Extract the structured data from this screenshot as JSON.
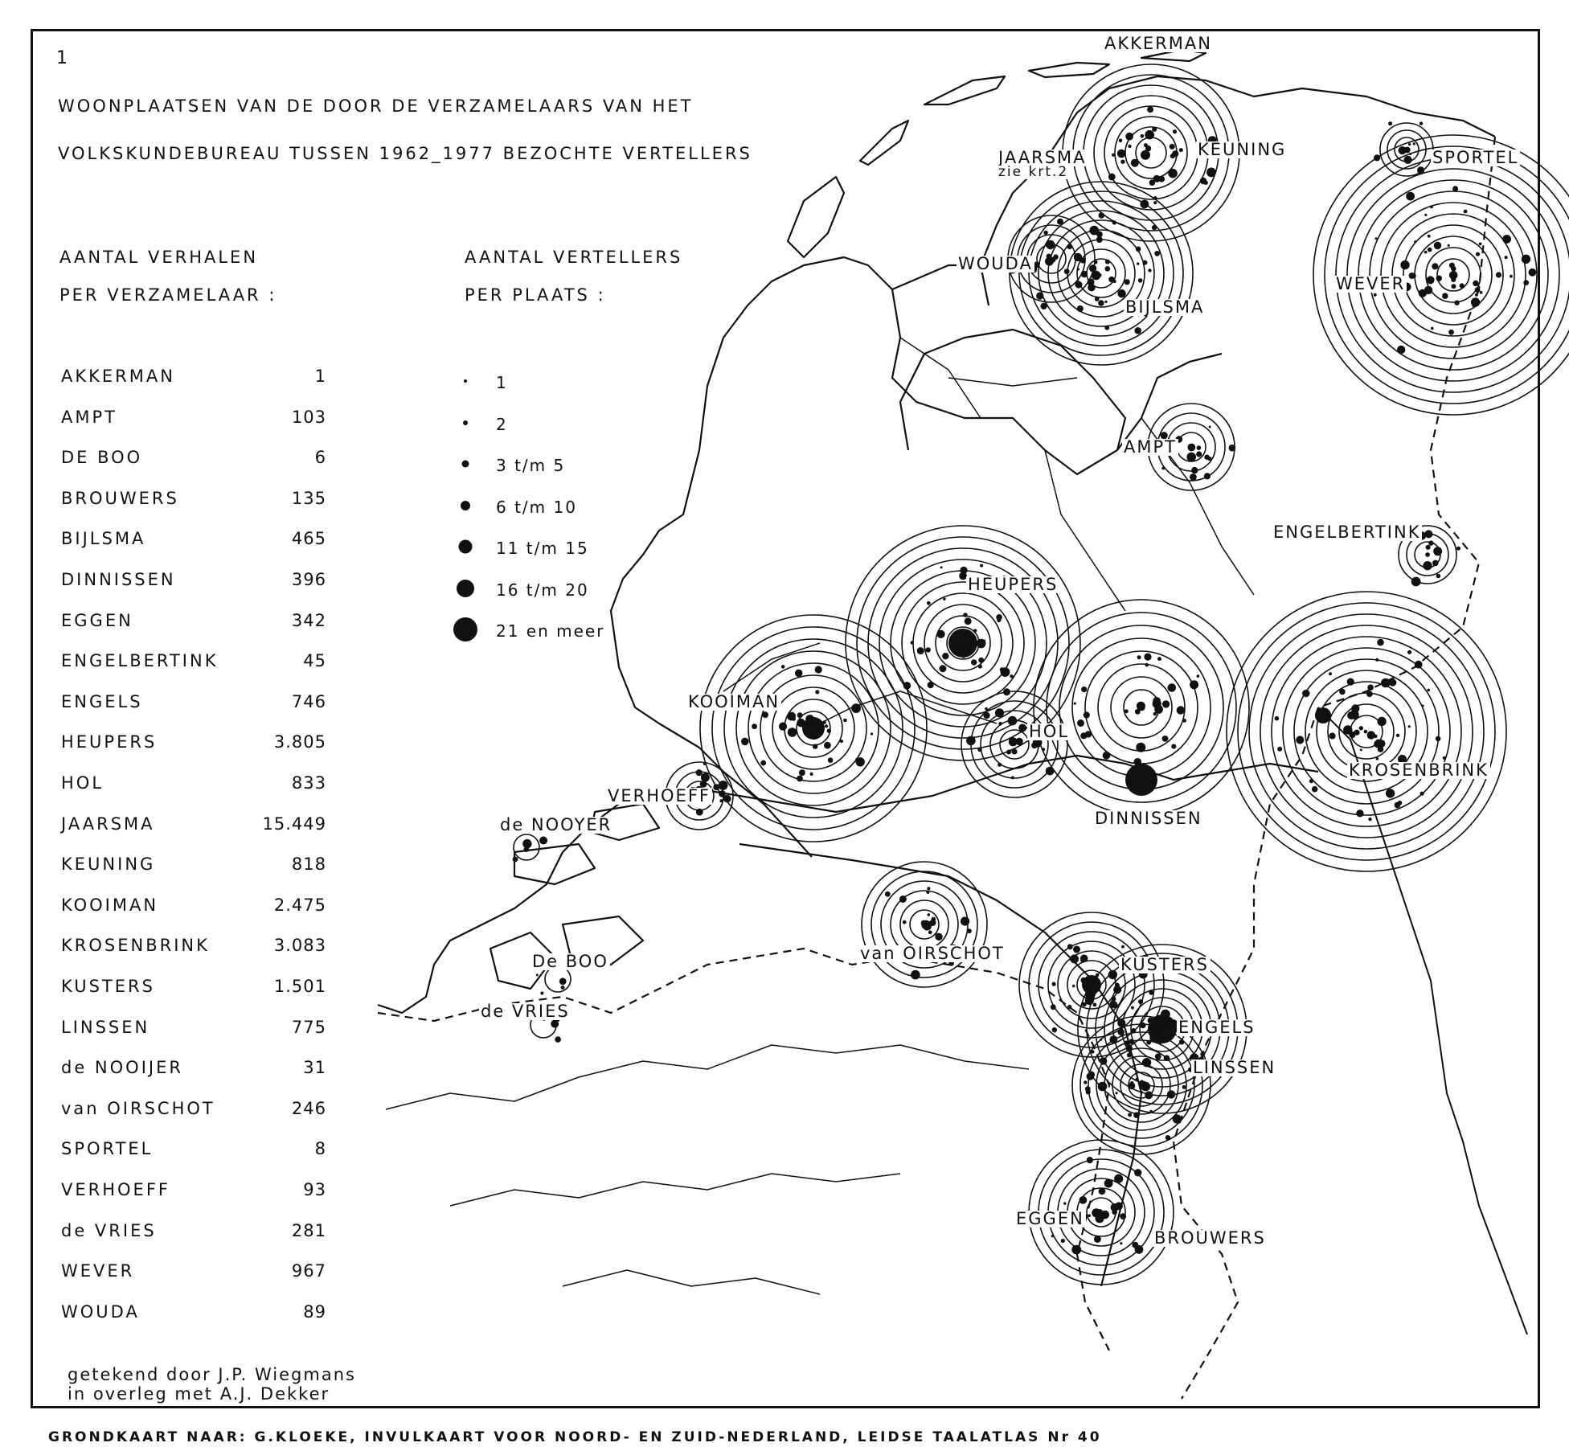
{
  "map_number": "1",
  "title_line1": "WOONPLAATSEN VAN DE DOOR DE VERZAMELAARS VAN HET",
  "title_line2": "VOLKSKUNDEBUREAU TUSSEN 1962_1977 BEZOCHTE VERTELLERS",
  "legend_collectors": {
    "heading_line1": "AANTAL VERHALEN",
    "heading_line2": "PER VERZAMELAAR :",
    "rows": [
      {
        "name": "AKKERMAN",
        "count": "1"
      },
      {
        "name": "AMPT",
        "count": "103"
      },
      {
        "name": "DE BOO",
        "count": "6"
      },
      {
        "name": "BROUWERS",
        "count": "135"
      },
      {
        "name": "BIJLSMA",
        "count": "465"
      },
      {
        "name": "DINNISSEN",
        "count": "396"
      },
      {
        "name": "EGGEN",
        "count": "342"
      },
      {
        "name": "ENGELBERTINK",
        "count": "45"
      },
      {
        "name": "ENGELS",
        "count": "746"
      },
      {
        "name": "HEUPERS",
        "count": "3.805"
      },
      {
        "name": "HOL",
        "count": "833"
      },
      {
        "name": "JAARSMA",
        "count": "15.449"
      },
      {
        "name": "KEUNING",
        "count": "818"
      },
      {
        "name": "KOOIMAN",
        "count": "2.475"
      },
      {
        "name": "KROSENBRINK",
        "count": "3.083"
      },
      {
        "name": "KUSTERS",
        "count": "1.501"
      },
      {
        "name": "LINSSEN",
        "count": "775"
      },
      {
        "name": "de NOOIJER",
        "count": "31"
      },
      {
        "name": "van OIRSCHOT",
        "count": "246"
      },
      {
        "name": "SPORTEL",
        "count": "8"
      },
      {
        "name": "VERHOEFF",
        "count": "93"
      },
      {
        "name": "de VRIES",
        "count": "281"
      },
      {
        "name": "WEVER",
        "count": "967"
      },
      {
        "name": "WOUDA",
        "count": "89"
      }
    ]
  },
  "legend_sizes": {
    "heading_line1": "AANTAL VERTELLERS",
    "heading_line2": "PER PLAATS :",
    "rows": [
      {
        "label": "1",
        "level": 1
      },
      {
        "label": "2",
        "level": 2
      },
      {
        "label": "3 t/m 5",
        "level": 3
      },
      {
        "label": "6 t/m 10",
        "level": 4
      },
      {
        "label": "11 t/m 15",
        "level": 5
      },
      {
        "label": "16 t/m 20",
        "level": 6
      },
      {
        "label": "21 en meer",
        "level": 7
      }
    ]
  },
  "map_labels": {
    "akkerman": "AKKERMAN",
    "keuning": "KEUNING",
    "sportel": "SPORTEL",
    "jaarsma": "JAARSMA",
    "jaarsma_note": "zie krt.2",
    "wouda": "WOUDA",
    "bijlsma": "BIJLSMA",
    "wever": "WEVER",
    "ampt": "AMPT",
    "engelbertink": "ENGELBERTINK",
    "heupers": "HEUPERS",
    "kooiman": "KOOIMAN",
    "hol": "HOL",
    "krosenbrink": "KROSENBRINK",
    "verhoeff": "VERHOEFF",
    "dinnissen": "DINNISSEN",
    "denooyer": "de NOOYER",
    "vanoirschot": "van OIRSCHOT",
    "kusters": "KUSTERS",
    "deboo": "De BOO",
    "devries": "de VRIES",
    "engels": "ENGELS",
    "linssen": "LINSSEN",
    "eggen": "EGGEN",
    "brouwers": "BROUWERS"
  },
  "credit_line1": "getekend door J.P. Wiegmans",
  "credit_line2": "in overleg met A.J. Dekker",
  "footer": "GRONDKAART NAAR: G.KLOEKE, INVULKAART VOOR NOORD-   EN ZUID-NEDERLAND, LEIDSE TAALATLAS Nr 40",
  "ink_color": "#111111",
  "paper_color": "#ffffff"
}
